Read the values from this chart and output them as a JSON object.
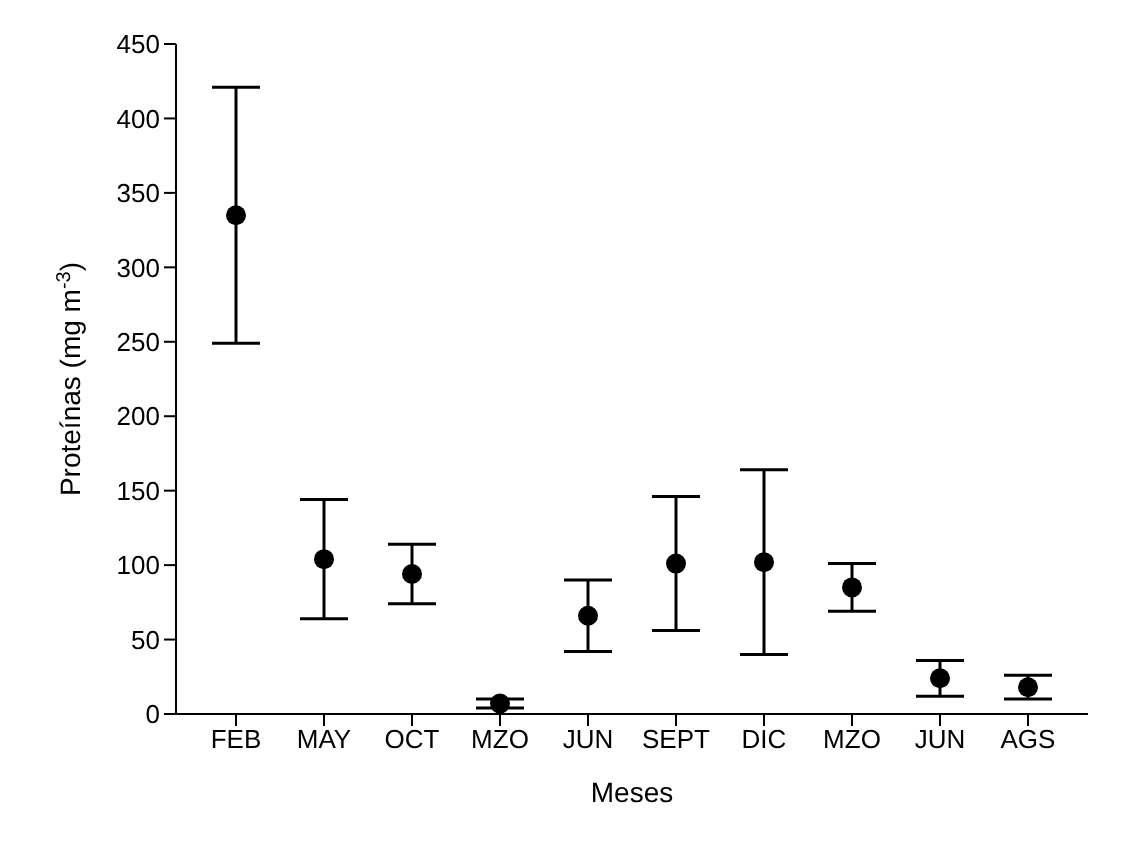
{
  "chart_data": {
    "type": "scatter",
    "xlabel": "Meses",
    "ylabel": "Proteínas (mg m$^{-3}$)",
    "categories": [
      "FEB",
      "MAY",
      "OCT",
      "MZO",
      "JUN",
      "SEPT",
      "DIC",
      "MZO",
      "JUN",
      "AGS"
    ],
    "values": [
      335,
      104,
      94,
      7,
      66,
      101,
      102,
      85,
      24,
      18
    ],
    "errors": [
      86,
      40,
      20,
      3,
      24,
      45,
      62,
      16,
      12,
      8
    ],
    "color": "#000000",
    "marker": "circle",
    "ylim": [
      0,
      450
    ],
    "yticks": [
      0,
      50,
      100,
      150,
      200,
      250,
      300,
      350,
      400,
      450
    ],
    "grid": false
  }
}
